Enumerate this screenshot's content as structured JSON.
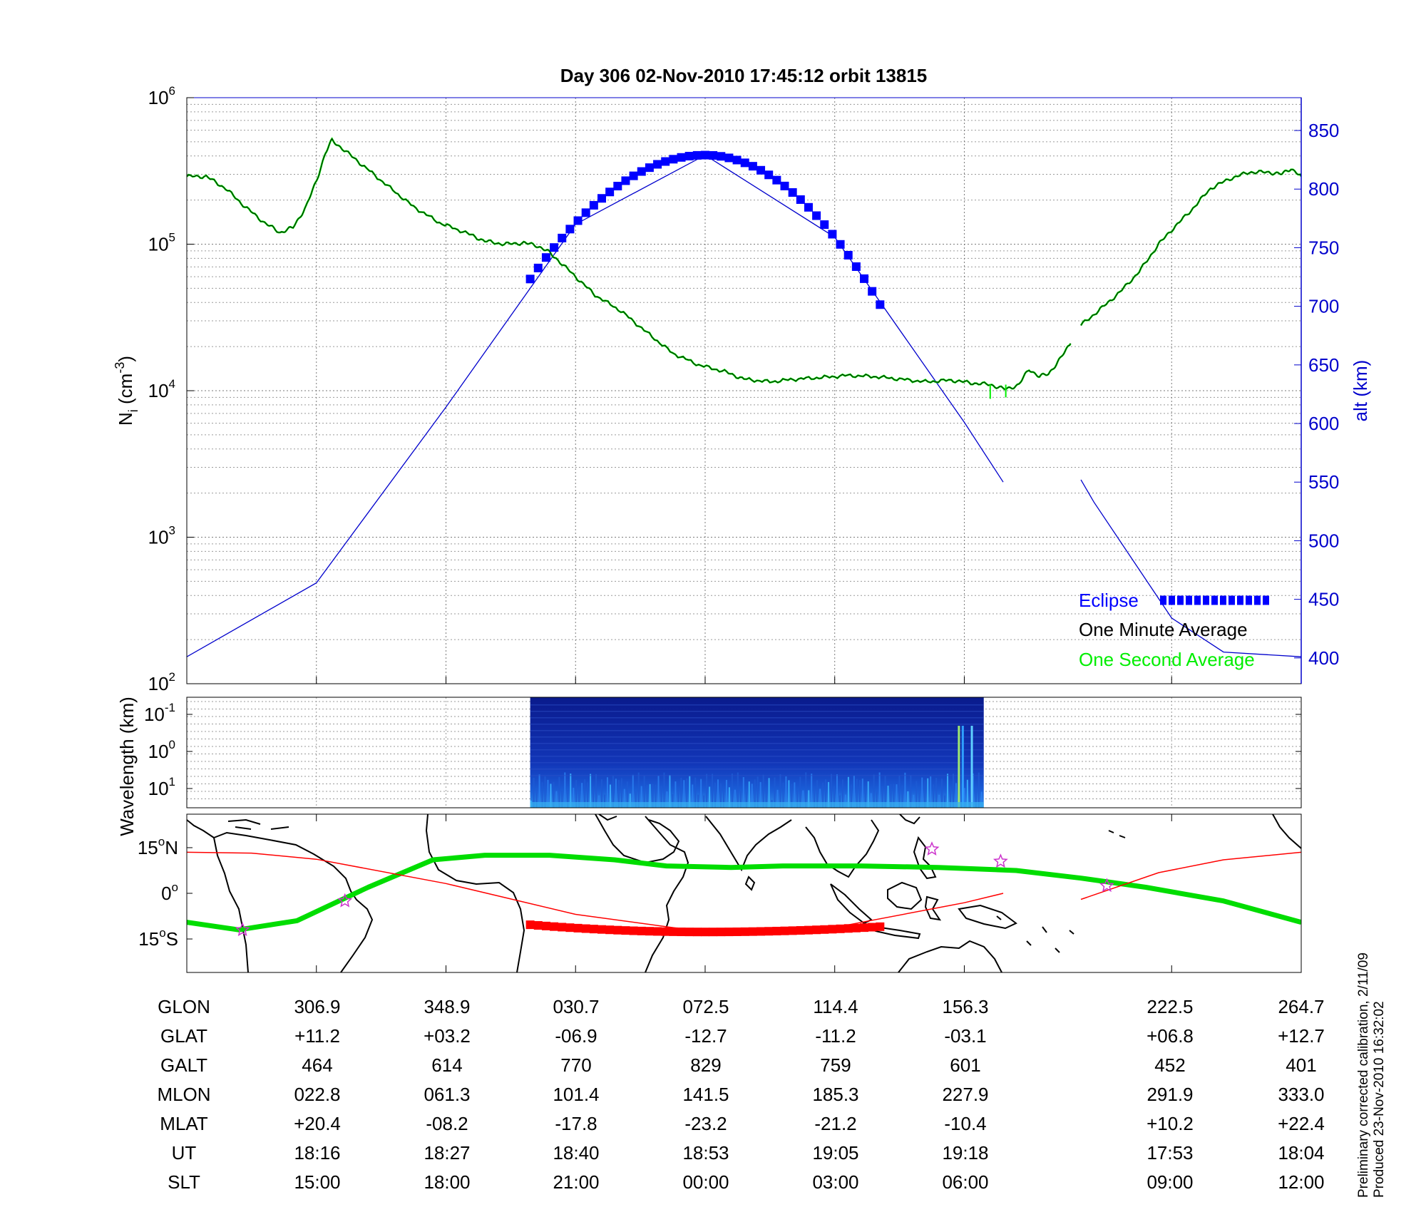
{
  "title": "Day 306  02-Nov-2010 17:45:12   orbit 13815",
  "colors": {
    "density_green": "#00ee00",
    "density_black": "#000000",
    "altitude_blue": "#0000cc",
    "eclipse_blue": "#0000ff",
    "track_green": "#00dd00",
    "track_red": "#ff0000",
    "eclipse_red": "#ff0000",
    "star_magenta": "#cc33cc"
  },
  "chart_data": [
    {
      "type": "line",
      "panel": "density",
      "ylabel_main": "N",
      "ylabel_sub": "i",
      "ylabel_units": "(cm",
      "ylabel_exp": "-3",
      "ylabel_close": ")",
      "ylabel_right": "alt (km)",
      "yscale_left": "log",
      "ylim_left": [
        100,
        1000000
      ],
      "yticks_left": [
        {
          "base": "10",
          "exp": "2"
        },
        {
          "base": "10",
          "exp": "3"
        },
        {
          "base": "10",
          "exp": "4"
        },
        {
          "base": "10",
          "exp": "5"
        },
        {
          "base": "10",
          "exp": "6"
        }
      ],
      "ylim_right": [
        378,
        878
      ],
      "yticks_right": [
        "400",
        "450",
        "500",
        "550",
        "600",
        "650",
        "700",
        "750",
        "800",
        "850"
      ],
      "xlim": [
        0,
        8.6
      ],
      "grid": true,
      "legend": [
        {
          "label": "Eclipse",
          "color": "#0000ff"
        },
        {
          "label": "One Minute Average",
          "color": "#000000"
        },
        {
          "label": "One Second Average",
          "color": "#00ee00"
        }
      ],
      "series": [
        {
          "name": "One Second Average",
          "segments": [
            [
              [
                0,
                290000
              ],
              [
                0.15,
                290000
              ],
              [
                0.3,
                240000
              ],
              [
                0.45,
                180000
              ],
              [
                0.6,
                140000
              ],
              [
                0.72,
                120000
              ],
              [
                0.82,
                130000
              ],
              [
                0.92,
                180000
              ],
              [
                1.0,
                270000
              ],
              [
                1.07,
                420000
              ],
              [
                1.12,
                510000
              ],
              [
                1.2,
                450000
              ],
              [
                1.35,
                350000
              ],
              [
                1.55,
                250000
              ],
              [
                1.75,
                180000
              ],
              [
                1.95,
                140000
              ],
              [
                2.15,
                120000
              ],
              [
                2.3,
                105000
              ],
              [
                2.45,
                100000
              ],
              [
                2.6,
                102000
              ],
              [
                2.7,
                98000
              ],
              [
                2.78,
                90000
              ],
              [
                2.85,
                80000
              ],
              [
                3.0,
                60000
              ],
              [
                3.15,
                45000
              ],
              [
                3.35,
                35000
              ],
              [
                3.55,
                25000
              ],
              [
                3.75,
                18000
              ],
              [
                3.95,
                15000
              ],
              [
                4.15,
                13500
              ],
              [
                4.3,
                12000
              ],
              [
                4.5,
                11500
              ],
              [
                4.7,
                12000
              ],
              [
                4.9,
                12300
              ],
              [
                5.1,
                12700
              ],
              [
                5.3,
                12500
              ],
              [
                5.5,
                12000
              ],
              [
                5.7,
                11500
              ],
              [
                5.9,
                11800
              ],
              [
                6.05,
                11300
              ],
              [
                6.2,
                11000
              ],
              [
                6.32,
                10200
              ],
              [
                6.42,
                11000
              ],
              [
                6.5,
                14000
              ],
              [
                6.58,
                12500
              ],
              [
                6.65,
                13000
              ],
              [
                6.75,
                17000
              ],
              [
                6.82,
                21000
              ]
            ],
            [
              [
                6.9,
                28000
              ],
              [
                7.05,
                36000
              ],
              [
                7.2,
                47000
              ],
              [
                7.35,
                65000
              ],
              [
                7.5,
                100000
              ],
              [
                7.6,
                125000
              ],
              [
                7.75,
                170000
              ],
              [
                7.9,
                240000
              ],
              [
                8.05,
                280000
              ],
              [
                8.2,
                310000
              ],
              [
                8.35,
                310000
              ],
              [
                8.45,
                300000
              ],
              [
                8.52,
                330000
              ],
              [
                8.6,
                290000
              ]
            ]
          ]
        },
        {
          "name": "One Minute Average",
          "segments": [
            [
              [
                0,
                290000
              ],
              [
                0.15,
                290000
              ],
              [
                0.3,
                240000
              ],
              [
                0.45,
                180000
              ],
              [
                0.6,
                140000
              ],
              [
                0.72,
                120000
              ],
              [
                0.82,
                130000
              ],
              [
                0.92,
                180000
              ],
              [
                1.0,
                270000
              ],
              [
                1.07,
                420000
              ],
              [
                1.12,
                510000
              ],
              [
                1.2,
                450000
              ],
              [
                1.35,
                350000
              ],
              [
                1.55,
                250000
              ],
              [
                1.75,
                180000
              ],
              [
                1.95,
                140000
              ],
              [
                2.15,
                120000
              ],
              [
                2.3,
                105000
              ],
              [
                2.45,
                100000
              ],
              [
                2.6,
                102000
              ],
              [
                2.7,
                98000
              ],
              [
                2.78,
                90000
              ],
              [
                2.85,
                80000
              ],
              [
                3.0,
                60000
              ],
              [
                3.15,
                45000
              ],
              [
                3.35,
                35000
              ],
              [
                3.55,
                25000
              ],
              [
                3.75,
                18000
              ],
              [
                3.95,
                15000
              ],
              [
                4.15,
                13500
              ],
              [
                4.3,
                12000
              ],
              [
                4.5,
                11500
              ],
              [
                4.7,
                12000
              ],
              [
                4.9,
                12300
              ],
              [
                5.1,
                12700
              ],
              [
                5.3,
                12500
              ],
              [
                5.5,
                12000
              ],
              [
                5.7,
                11500
              ],
              [
                5.9,
                11800
              ],
              [
                6.05,
                11300
              ],
              [
                6.2,
                11000
              ],
              [
                6.32,
                10200
              ],
              [
                6.42,
                11000
              ],
              [
                6.5,
                14000
              ],
              [
                6.58,
                12500
              ],
              [
                6.65,
                13000
              ],
              [
                6.75,
                17000
              ],
              [
                6.82,
                21000
              ]
            ],
            [
              [
                6.9,
                28000
              ],
              [
                7.05,
                36000
              ],
              [
                7.2,
                47000
              ],
              [
                7.35,
                65000
              ],
              [
                7.5,
                100000
              ],
              [
                7.6,
                125000
              ],
              [
                7.75,
                170000
              ],
              [
                7.9,
                240000
              ],
              [
                8.05,
                280000
              ],
              [
                8.2,
                310000
              ],
              [
                8.35,
                310000
              ],
              [
                8.45,
                300000
              ],
              [
                8.52,
                330000
              ],
              [
                8.6,
                290000
              ]
            ]
          ]
        },
        {
          "name": "altitude",
          "axis": "right",
          "segments": [
            [
              [
                0,
                401
              ],
              [
                1,
                464
              ],
              [
                2,
                614
              ],
              [
                3,
                770
              ],
              [
                4,
                829
              ],
              [
                5,
                759
              ],
              [
                6,
                601
              ],
              [
                6.3,
                550
              ]
            ],
            [
              [
                6.9,
                552
              ],
              [
                7,
                533
              ],
              [
                7.6,
                434
              ],
              [
                8,
                405
              ],
              [
                8.6,
                401
              ]
            ]
          ]
        }
      ],
      "eclipse": {
        "x_start": 2.65,
        "x_end": 5.35,
        "alt_peak": 829
      }
    },
    {
      "type": "heatmap",
      "panel": "spectrogram",
      "ylabel": "Wavelength (km)",
      "yticks": [
        {
          "base": "10",
          "exp": "-1"
        },
        {
          "base": "10",
          "exp": "0"
        },
        {
          "base": "10",
          "exp": "1"
        }
      ],
      "x_start": 2.65,
      "x_end": 6.15
    },
    {
      "type": "line",
      "panel": "map",
      "yticks": [
        {
          "value": "15",
          "deg": "o",
          "hem": "N"
        },
        {
          "value": "0",
          "deg": "o",
          "hem": ""
        },
        {
          "value": "15",
          "deg": "o",
          "hem": "S"
        }
      ],
      "ylim": [
        -26,
        26
      ],
      "series": [
        {
          "name": "magnetic equator",
          "points": [
            [
              0,
              -9.5
            ],
            [
              0.4,
              -12
            ],
            [
              0.85,
              -9
            ],
            [
              1.4,
              2
            ],
            [
              1.9,
              11
            ],
            [
              2.3,
              12.5
            ],
            [
              2.8,
              12.5
            ],
            [
              3.3,
              11
            ],
            [
              3.7,
              9
            ],
            [
              4.2,
              8.5
            ],
            [
              4.6,
              9
            ],
            [
              5.2,
              9
            ],
            [
              5.8,
              8.5
            ],
            [
              6.4,
              7.5
            ],
            [
              6.9,
              5
            ],
            [
              7.4,
              2
            ],
            [
              8.0,
              -2.5
            ],
            [
              8.6,
              -9.5
            ]
          ]
        },
        {
          "name": "orbit track",
          "points": [
            [
              0,
              13.5
            ],
            [
              0.5,
              13.2
            ],
            [
              1,
              11.2
            ],
            [
              2,
              3.2
            ],
            [
              3,
              -6.9
            ],
            [
              4,
              -12.7
            ],
            [
              5,
              -11.2
            ],
            [
              6,
              -3.1
            ],
            [
              6.3,
              0
            ]
          ]
        },
        {
          "name": "orbit track",
          "points": [
            [
              6.9,
              -2
            ],
            [
              7.5,
              6.8
            ],
            [
              8,
              11
            ],
            [
              8.6,
              13.5
            ]
          ]
        }
      ],
      "eclipse": {
        "x_start": 2.65,
        "x_end": 5.35
      },
      "stars": [
        [
          0.43,
          -12
        ],
        [
          1.22,
          -2.5
        ],
        [
          5.75,
          14.5
        ],
        [
          6.28,
          10.5
        ],
        [
          7.1,
          2.5
        ]
      ]
    }
  ],
  "table": {
    "row_labels": [
      "GLON",
      "GLAT",
      "GALT",
      "MLON",
      "MLAT",
      "UT",
      "SLT"
    ],
    "columns": [
      [
        "306.9",
        "+11.2",
        "464",
        "022.8",
        "+20.4",
        "18:16",
        "15:00"
      ],
      [
        "348.9",
        "+03.2",
        "614",
        "061.3",
        "-08.2",
        "18:27",
        "18:00"
      ],
      [
        "030.7",
        "-06.9",
        "770",
        "101.4",
        "-17.8",
        "18:40",
        "21:00"
      ],
      [
        "072.5",
        "-12.7",
        "829",
        "141.5",
        "-23.2",
        "18:53",
        "00:00"
      ],
      [
        "114.4",
        "-11.2",
        "759",
        "185.3",
        "-21.2",
        "19:05",
        "03:00"
      ],
      [
        "156.3",
        "-03.1",
        "601",
        "227.9",
        "-10.4",
        "19:18",
        "06:00"
      ],
      [
        "222.5",
        "+06.8",
        "452",
        "291.9",
        "+10.2",
        "17:53",
        "09:00"
      ],
      [
        "264.7",
        "+12.7",
        "401",
        "333.0",
        "+22.4",
        "18:04",
        "12:00"
      ]
    ]
  },
  "footer": {
    "line1": "Preliminary corrected calibration, 2/11/09",
    "line2": "Produced 23-Nov-2010 16:32:02"
  }
}
